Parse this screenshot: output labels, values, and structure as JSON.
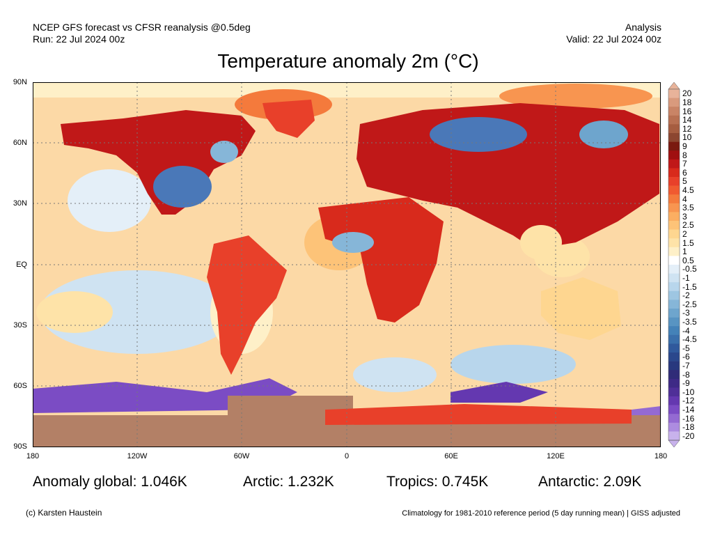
{
  "header": {
    "left_line1": "NCEP GFS forecast vs CFSR reanalysis @0.5deg",
    "left_line2": "Run: 22 Jul 2024 00z",
    "right_line1": "Analysis",
    "right_line2": "Valid: 22 Jul 2024 00z"
  },
  "title": "Temperature anomaly 2m (°C)",
  "map": {
    "projection": "equirectangular",
    "lat_labels": [
      "90N",
      "60N",
      "30N",
      "EQ",
      "30S",
      "60S",
      "90S"
    ],
    "lon_labels": [
      "180",
      "120W",
      "60W",
      "0",
      "60E",
      "120E",
      "180"
    ],
    "grid": "dotted",
    "colors": {
      "land": "#d9532f",
      "ocean_warm": "#fcd9a6",
      "ocean_cool": "#cfe3f2",
      "cold_region": "#4a78b8",
      "very_cold": "#7a4cc8",
      "antarctic_warm": "#b38066"
    }
  },
  "legend": {
    "labels": [
      "20",
      "18",
      "16",
      "14",
      "12",
      "10",
      "9",
      "8",
      "7",
      "6",
      "5",
      "4.5",
      "4",
      "3.5",
      "3",
      "2.5",
      "2",
      "1.5",
      "1",
      "0.5",
      "-0.5",
      "-1",
      "-1.5",
      "-2",
      "-2.5",
      "-3",
      "-3.5",
      "-4",
      "-4.5",
      "-5",
      "-6",
      "-7",
      "-8",
      "-9",
      "-10",
      "-12",
      "-14",
      "-16",
      "-18",
      "-20"
    ],
    "colors": [
      "#e8b39a",
      "#d99a7d",
      "#c98466",
      "#b87052",
      "#a65d40",
      "#8c4630",
      "#7a1a10",
      "#a01010",
      "#c01818",
      "#d82a1c",
      "#e8402a",
      "#f05a30",
      "#f47a3c",
      "#f89550",
      "#fbae62",
      "#fdc378",
      "#fed690",
      "#fee3a8",
      "#fef0c8",
      "#ffffff",
      "#e4eff8",
      "#cfe3f2",
      "#b8d6ec",
      "#9ec6e2",
      "#86b6d8",
      "#6ea5cd",
      "#5894c2",
      "#4482b8",
      "#3a6fab",
      "#30599c",
      "#2a478c",
      "#28387e",
      "#302c78",
      "#3e2a86",
      "#4f2f98",
      "#6438b0",
      "#7b4cc4",
      "#946ad2",
      "#ad8ce0",
      "#c8b2ec"
    ]
  },
  "stats": {
    "global": "Anomaly global: 1.046K",
    "arctic": "Arctic: 1.232K",
    "tropics": "Tropics: 0.745K",
    "antarctic": "Antarctic: 2.09K"
  },
  "footer": {
    "left": "(c) Karsten Haustein",
    "right": "Climatology for 1981-2010 reference period (5 day running mean) | GISS adjusted"
  }
}
